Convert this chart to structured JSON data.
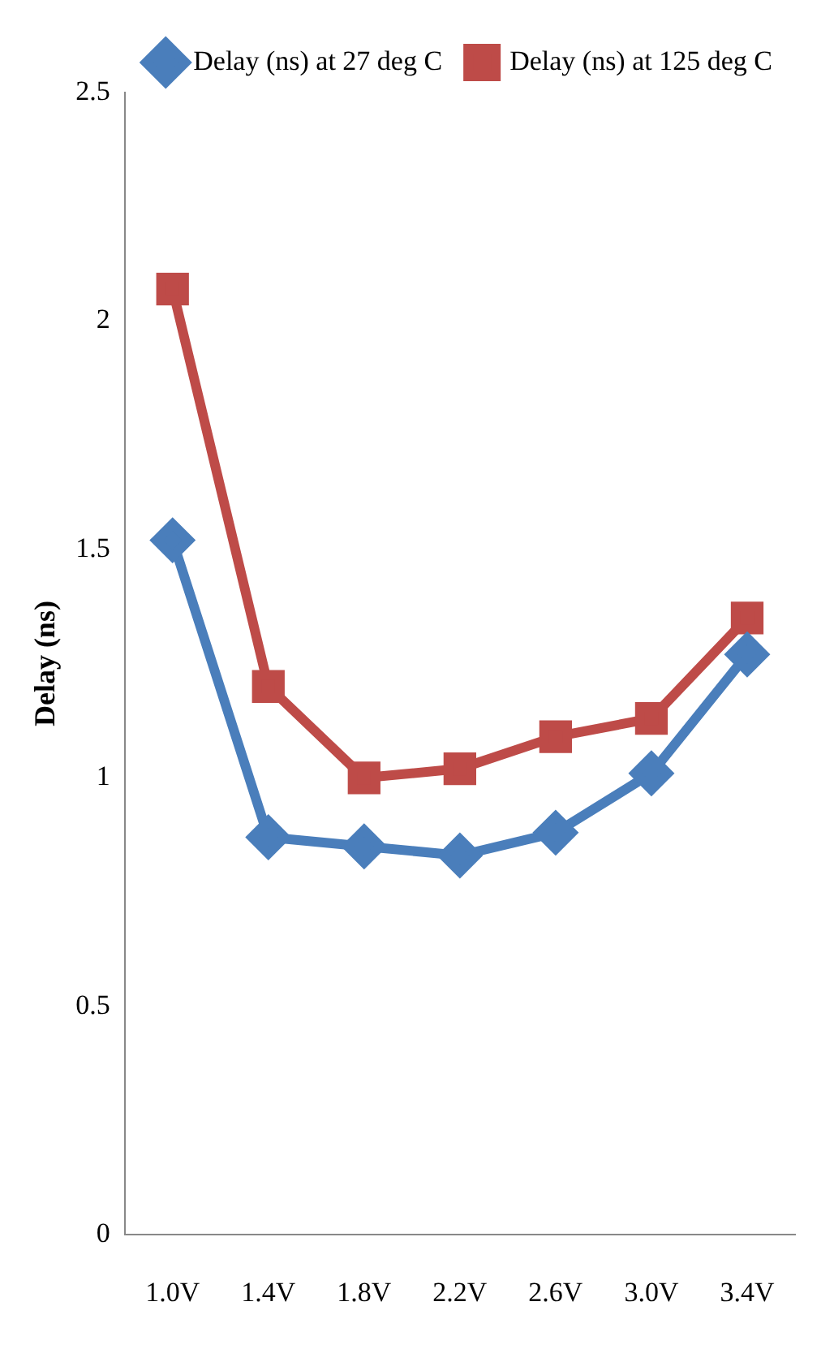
{
  "chart_data": {
    "type": "line",
    "ylabel": "Delay (ns)",
    "categories": [
      "1.0V",
      "1.4V",
      "1.8V",
      "2.2V",
      "2.6V",
      "3.0V",
      "3.4V"
    ],
    "series": [
      {
        "name": "Delay (ns) at 27 deg C",
        "color": "#4a7ebb",
        "values": [
          1.52,
          0.87,
          0.85,
          0.83,
          0.88,
          1.01,
          1.27
        ],
        "marker": "diamond"
      },
      {
        "name": "Delay (ns) at 125 deg C",
        "color": "#be4b48",
        "values": [
          2.07,
          1.2,
          1.0,
          1.02,
          1.09,
          1.13,
          1.35
        ],
        "marker": "square"
      }
    ],
    "ylim": [
      0,
      2.5
    ],
    "yticks": [
      0,
      0.5,
      1,
      1.5,
      2,
      2.5
    ],
    "grid": false,
    "legend": "top right",
    "line_style": "solid"
  }
}
